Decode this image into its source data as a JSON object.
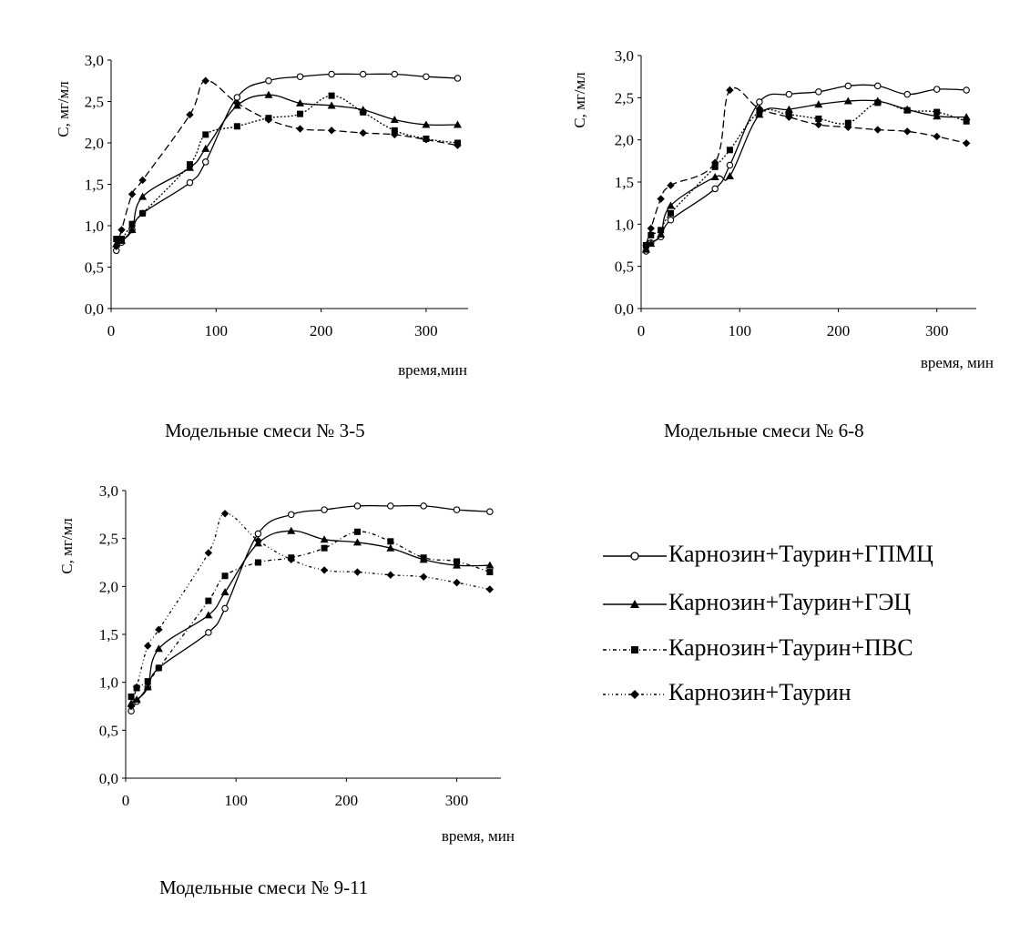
{
  "chart_data": [
    {
      "type": "line",
      "caption": "Модельные смеси № 3-5",
      "ylabel": "С, мг/мл",
      "xlabel": "время,мин",
      "ylim": [
        0,
        3.0
      ],
      "xlim": [
        0,
        340
      ],
      "yticks": [
        "0,0",
        "0,5",
        "1,0",
        "1,5",
        "2,0",
        "2,5",
        "3,0"
      ],
      "ytick_values": [
        0,
        0.5,
        1.0,
        1.5,
        2.0,
        2.5,
        3.0
      ],
      "xticks": [
        "0",
        "100",
        "200",
        "300"
      ],
      "xtick_values": [
        0,
        100,
        200,
        300
      ],
      "series": [
        {
          "x": [
            5,
            10,
            20,
            30,
            75,
            90,
            120,
            150,
            180,
            210,
            240,
            270,
            300,
            330
          ],
          "y": [
            0.7,
            0.8,
            0.95,
            1.15,
            1.52,
            1.77,
            2.55,
            2.75,
            2.8,
            2.83,
            2.83,
            2.83,
            2.8,
            2.78
          ]
        },
        {
          "x": [
            5,
            10,
            20,
            30,
            75,
            90,
            120,
            150,
            180,
            210,
            240,
            270,
            300,
            330
          ],
          "y": [
            0.78,
            0.82,
            0.95,
            1.35,
            1.7,
            1.93,
            2.45,
            2.58,
            2.48,
            2.45,
            2.4,
            2.28,
            2.22,
            2.22
          ]
        },
        {
          "x": [
            5,
            10,
            20,
            30,
            75,
            90,
            120,
            150,
            180,
            210,
            240,
            270,
            300,
            330
          ],
          "y": [
            0.84,
            0.84,
            1.02,
            1.15,
            1.74,
            2.1,
            2.2,
            2.3,
            2.35,
            2.57,
            2.37,
            2.15,
            2.05,
            2.0
          ]
        },
        {
          "x": [
            5,
            10,
            20,
            30,
            75,
            90,
            120,
            150,
            180,
            210,
            240,
            270,
            300,
            330
          ],
          "y": [
            0.75,
            0.95,
            1.38,
            1.55,
            2.34,
            2.75,
            2.48,
            2.28,
            2.17,
            2.15,
            2.12,
            2.1,
            2.04,
            1.97
          ]
        }
      ]
    },
    {
      "type": "line",
      "caption": "Модельные смеси № 6-8",
      "ylabel": "С, мг/мл",
      "xlabel": "время, мин",
      "ylim": [
        0,
        3.0
      ],
      "xlim": [
        0,
        340
      ],
      "yticks": [
        "0,0",
        "0,5",
        "1,0",
        "1,5",
        "2,0",
        "2,5",
        "3,0"
      ],
      "ytick_values": [
        0,
        0.5,
        1.0,
        1.5,
        2.0,
        2.5,
        3.0
      ],
      "xticks": [
        "0",
        "100",
        "200",
        "300"
      ],
      "xtick_values": [
        0,
        100,
        200,
        300
      ],
      "series": [
        {
          "x": [
            5,
            10,
            20,
            30,
            75,
            90,
            120,
            150,
            180,
            210,
            240,
            270,
            300,
            330
          ],
          "y": [
            0.68,
            0.78,
            0.85,
            1.05,
            1.42,
            1.7,
            2.45,
            2.54,
            2.57,
            2.64,
            2.64,
            2.54,
            2.6,
            2.59
          ]
        },
        {
          "x": [
            5,
            10,
            20,
            30,
            75,
            90,
            120,
            150,
            180,
            210,
            240,
            270,
            300,
            330
          ],
          "y": [
            0.7,
            0.77,
            0.88,
            1.22,
            1.56,
            1.57,
            2.3,
            2.36,
            2.42,
            2.46,
            2.46,
            2.36,
            2.28,
            2.27
          ]
        },
        {
          "x": [
            5,
            10,
            20,
            30,
            75,
            90,
            120,
            150,
            180,
            210,
            240,
            270,
            300,
            330
          ],
          "y": [
            0.75,
            0.87,
            0.93,
            1.13,
            1.68,
            1.88,
            2.33,
            2.3,
            2.25,
            2.2,
            2.44,
            2.35,
            2.33,
            2.22
          ]
        },
        {
          "x": [
            5,
            10,
            20,
            30,
            75,
            90,
            120,
            150,
            180,
            210,
            240,
            270,
            300,
            330
          ],
          "y": [
            0.75,
            0.95,
            1.3,
            1.46,
            1.73,
            2.59,
            2.37,
            2.27,
            2.18,
            2.15,
            2.12,
            2.1,
            2.04,
            1.96
          ]
        }
      ]
    },
    {
      "type": "line",
      "caption": "Модельные смеси № 9-11",
      "ylabel": "С, мг/мл",
      "xlabel": "время, мин",
      "ylim": [
        0,
        3.0
      ],
      "xlim": [
        0,
        340
      ],
      "yticks": [
        "0,0",
        "0,5",
        "1,0",
        "1,5",
        "2,0",
        "2,5",
        "3,0"
      ],
      "ytick_values": [
        0,
        0.5,
        1.0,
        1.5,
        2.0,
        2.5,
        3.0
      ],
      "xticks": [
        "0",
        "100",
        "200",
        "300"
      ],
      "xtick_values": [
        0,
        100,
        200,
        300
      ],
      "series": [
        {
          "x": [
            5,
            10,
            20,
            30,
            75,
            90,
            120,
            150,
            180,
            210,
            240,
            270,
            300,
            330
          ],
          "y": [
            0.7,
            0.8,
            0.95,
            1.15,
            1.52,
            1.77,
            2.55,
            2.75,
            2.8,
            2.84,
            2.84,
            2.84,
            2.8,
            2.78
          ]
        },
        {
          "x": [
            5,
            10,
            20,
            30,
            75,
            90,
            120,
            150,
            180,
            210,
            240,
            270,
            300,
            330
          ],
          "y": [
            0.78,
            0.82,
            0.95,
            1.35,
            1.7,
            1.94,
            2.45,
            2.58,
            2.49,
            2.46,
            2.4,
            2.28,
            2.22,
            2.22
          ]
        },
        {
          "x": [
            5,
            10,
            20,
            30,
            75,
            90,
            120,
            150,
            180,
            210,
            240,
            270,
            300,
            330
          ],
          "y": [
            0.85,
            0.94,
            1.01,
            1.15,
            1.85,
            2.11,
            2.25,
            2.3,
            2.4,
            2.57,
            2.47,
            2.3,
            2.26,
            2.15
          ]
        },
        {
          "x": [
            5,
            10,
            20,
            30,
            75,
            90,
            120,
            150,
            180,
            210,
            240,
            270,
            300,
            330
          ],
          "y": [
            0.75,
            0.95,
            1.38,
            1.55,
            2.35,
            2.76,
            2.48,
            2.28,
            2.17,
            2.15,
            2.12,
            2.1,
            2.04,
            1.97
          ]
        }
      ]
    }
  ],
  "legend": {
    "entries": [
      {
        "label": "Карнозин+Таурин+ГПМЦ",
        "marker": "circle-open",
        "line": "solid"
      },
      {
        "label": "Карнозин+Таурин+ГЭЦ",
        "marker": "triangle",
        "line": "solid"
      },
      {
        "label": "Карнозин+Таурин+ПВС",
        "marker": "square",
        "line": "dash-dot"
      },
      {
        "label": "Карнозин+Таурин",
        "marker": "diamond",
        "line": "dash-dot-dot"
      }
    ]
  }
}
